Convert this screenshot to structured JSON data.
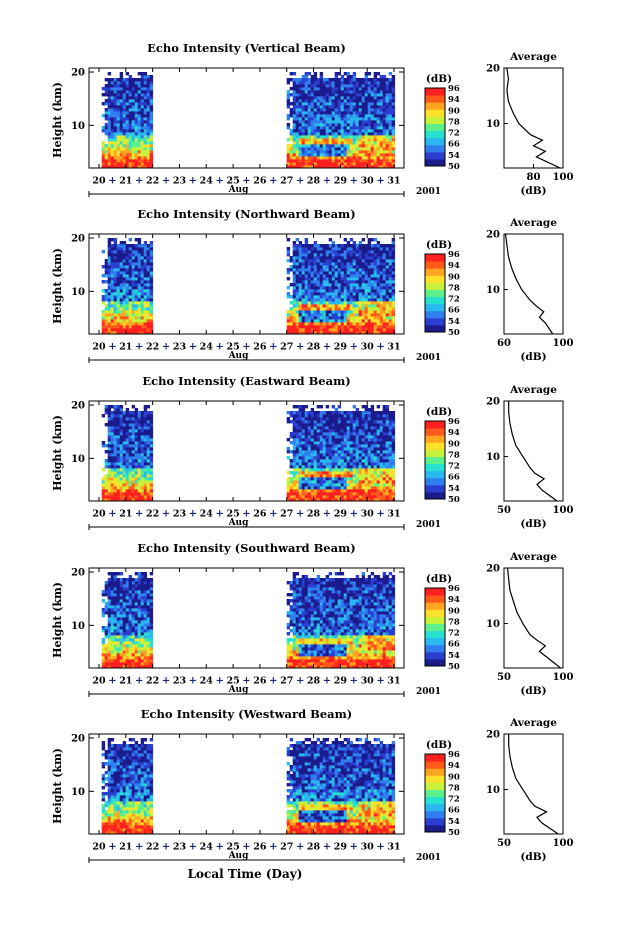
{
  "figure": {
    "xlabel": "Local Time (Day)",
    "year": "2001",
    "month_label": "Aug",
    "day_ticks": [
      "20",
      "21",
      "22",
      "23",
      "24",
      "25",
      "26",
      "27",
      "28",
      "29",
      "30",
      "31"
    ],
    "y_ticks": [
      "10",
      "20"
    ],
    "colorbar_unit": "(dB)",
    "colorbar_ticks": [
      "50",
      "54",
      "66",
      "72",
      "78",
      "90",
      "94",
      "96"
    ],
    "colorbar_colors": [
      "#1b1b8c",
      "#2a3fd0",
      "#2f7fee",
      "#29b8f0",
      "#27e0d0",
      "#5ef08a",
      "#c8f23a",
      "#ffe02a",
      "#ffa51f",
      "#ff5a1a",
      "#ff2020"
    ],
    "avg_title": "Average",
    "avg_xlabel": "(dB)"
  },
  "chart_data": [
    {
      "type": "heatmap",
      "title": "Echo Intensity (Vertical Beam)",
      "xlabel": "Aug",
      "ylabel": "Height (km)",
      "ylim": [
        2,
        20
      ],
      "xlim": [
        20,
        31
      ],
      "data_spans": [
        [
          20.1,
          22.0
        ],
        [
          27.0,
          31.0
        ]
      ],
      "colorbar_range": [
        50,
        96
      ],
      "average_profile": {
        "xlim": [
          60,
          100
        ],
        "x_ticks": [
          "80",
          "100"
        ],
        "height": [
          2,
          4,
          5,
          6,
          7,
          8,
          10,
          12,
          14,
          16,
          18,
          20
        ],
        "value": [
          98,
          82,
          88,
          80,
          86,
          78,
          70,
          66,
          63,
          62,
          63,
          62
        ]
      }
    },
    {
      "type": "heatmap",
      "title": "Echo Intensity (Northward Beam)",
      "xlabel": "Aug",
      "ylabel": "Height (km)",
      "ylim": [
        2,
        20
      ],
      "xlim": [
        20,
        31
      ],
      "data_spans": [
        [
          20.1,
          22.0
        ],
        [
          27.0,
          31.0
        ]
      ],
      "colorbar_range": [
        50,
        96
      ],
      "average_profile": {
        "xlim": [
          60,
          100
        ],
        "x_ticks": [
          "60",
          "100"
        ],
        "height": [
          2,
          4,
          5,
          6,
          7,
          8,
          10,
          12,
          14,
          16,
          18,
          20
        ],
        "value": [
          93,
          88,
          84,
          87,
          82,
          78,
          72,
          68,
          65,
          63,
          62,
          61
        ]
      }
    },
    {
      "type": "heatmap",
      "title": "Echo Intensity (Eastward Beam)",
      "xlabel": "Aug",
      "ylabel": "Height (km)",
      "ylim": [
        2,
        20
      ],
      "xlim": [
        20,
        31
      ],
      "data_spans": [
        [
          20.1,
          22.0
        ],
        [
          27.0,
          31.0
        ]
      ],
      "colorbar_range": [
        50,
        96
      ],
      "average_profile": {
        "xlim": [
          50,
          100
        ],
        "x_ticks": [
          "50",
          "100"
        ],
        "height": [
          2,
          4,
          5,
          6,
          7,
          8,
          10,
          12,
          14,
          16,
          18,
          20
        ],
        "value": [
          95,
          82,
          78,
          84,
          76,
          72,
          66,
          60,
          57,
          55,
          54,
          54
        ]
      }
    },
    {
      "type": "heatmap",
      "title": "Echo Intensity (Southward Beam)",
      "xlabel": "Aug",
      "ylabel": "Height (km)",
      "ylim": [
        2,
        20
      ],
      "xlim": [
        20,
        31
      ],
      "data_spans": [
        [
          20.1,
          22.0
        ],
        [
          27.0,
          31.0
        ]
      ],
      "colorbar_range": [
        50,
        96
      ],
      "average_profile": {
        "xlim": [
          50,
          100
        ],
        "x_ticks": [
          "50",
          "100"
        ],
        "height": [
          2,
          4,
          5,
          6,
          7,
          8,
          10,
          12,
          14,
          16,
          18,
          20
        ],
        "value": [
          98,
          86,
          80,
          85,
          78,
          72,
          66,
          61,
          58,
          55,
          54,
          53
        ]
      }
    },
    {
      "type": "heatmap",
      "title": "Echo Intensity (Westward Beam)",
      "xlabel": "Aug",
      "ylabel": "Height (km)",
      "ylim": [
        2,
        20
      ],
      "xlim": [
        20,
        31
      ],
      "data_spans": [
        [
          20.1,
          22.0
        ],
        [
          27.0,
          31.0
        ]
      ],
      "colorbar_range": [
        50,
        96
      ],
      "average_profile": {
        "xlim": [
          50,
          100
        ],
        "x_ticks": [
          "50",
          "100"
        ],
        "height": [
          2,
          4,
          5,
          6,
          7,
          8,
          10,
          12,
          14,
          16,
          18,
          20
        ],
        "value": [
          96,
          82,
          78,
          86,
          76,
          72,
          66,
          60,
          57,
          55,
          54,
          54
        ]
      }
    }
  ]
}
